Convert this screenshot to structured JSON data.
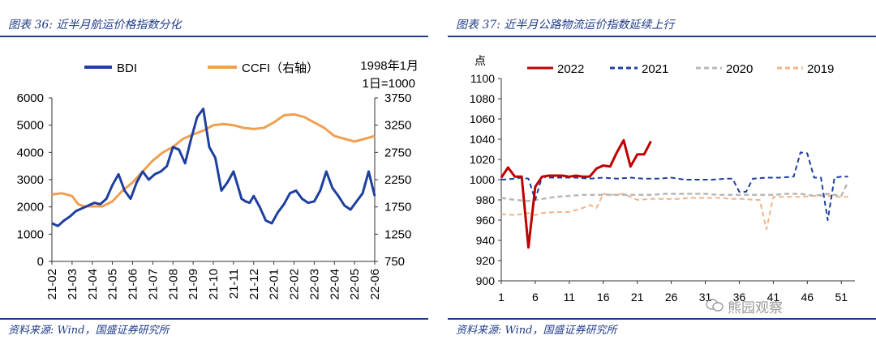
{
  "left": {
    "title": "图表 36:  近半月航运价格指数分化",
    "source": "资料来源:  Wind，国盛证券研究所",
    "legend_note_line1": "1998年1月",
    "legend_note_line2": "1日=1000",
    "colors": {
      "bdi": "#1f3f9f",
      "ccfi": "#f0a050",
      "axis": "#333333"
    }
  },
  "right": {
    "title": "图表 37:  近半月公路物流运价指数延续上行",
    "source": "资料来源:  Wind，国盛证券研究所",
    "y_unit": "点",
    "watermark": "熊园观察",
    "colors": {
      "2022": "#c00000",
      "2021": "#1f3f9f",
      "2020": "#b8b8b8",
      "2019": "#f2b48a"
    }
  },
  "chart_data": [
    {
      "type": "line",
      "title": "近半月航运价格指数分化",
      "categories": [
        "21-02",
        "21-03",
        "21-04",
        "21-05",
        "21-06",
        "21-07",
        "21-08",
        "21-09",
        "21-10",
        "21-11",
        "21-12",
        "22-01",
        "22-02",
        "22-03",
        "22-04",
        "22-05",
        "22-06"
      ],
      "y_left": {
        "ylim": [
          0,
          6000
        ],
        "ticks": [
          0,
          1000,
          2000,
          3000,
          4000,
          5000,
          6000
        ]
      },
      "y_right": {
        "ylim": [
          750,
          3750
        ],
        "ticks": [
          750,
          1250,
          1750,
          2250,
          2750,
          3250,
          3750
        ]
      },
      "series": [
        {
          "name": "BDI",
          "axis": "left",
          "x": [
            0,
            0.3,
            0.6,
            0.9,
            1.2,
            1.5,
            1.8,
            2.1,
            2.4,
            2.7,
            3.0,
            3.3,
            3.6,
            3.9,
            4.2,
            4.5,
            4.8,
            5.1,
            5.4,
            5.7,
            6.0,
            6.3,
            6.6,
            6.9,
            7.2,
            7.5,
            7.8,
            8.1,
            8.4,
            8.7,
            9.0,
            9.2,
            9.4,
            9.6,
            9.8,
            10.0,
            10.3,
            10.6,
            10.9,
            11.2,
            11.5,
            11.8,
            12.1,
            12.4,
            12.7,
            13.0,
            13.3,
            13.6,
            13.9,
            14.2,
            14.5,
            14.8,
            15.1,
            15.4,
            15.7,
            16.0
          ],
          "values": [
            1400,
            1300,
            1500,
            1650,
            1850,
            1950,
            2050,
            2150,
            2100,
            2300,
            2800,
            3200,
            2600,
            2300,
            2900,
            3300,
            3000,
            3200,
            3300,
            3500,
            4200,
            4100,
            3600,
            4500,
            5300,
            5600,
            4200,
            3800,
            2600,
            2900,
            3300,
            2800,
            2300,
            2200,
            2150,
            2400,
            2000,
            1500,
            1400,
            1800,
            2100,
            2500,
            2600,
            2300,
            2150,
            2200,
            2600,
            3300,
            2700,
            2400,
            2050,
            1900,
            2200,
            2500,
            3300,
            2400
          ]
        },
        {
          "name": "CCFI（右轴）",
          "axis": "right",
          "x": [
            0,
            0.5,
            1.0,
            1.3,
            1.6,
            2.0,
            2.5,
            3.0,
            3.5,
            4.0,
            4.5,
            5.0,
            5.5,
            6.0,
            6.5,
            7.0,
            7.5,
            8.0,
            8.5,
            9.0,
            9.5,
            10.0,
            10.5,
            11.0,
            11.5,
            12.0,
            12.5,
            13.0,
            13.5,
            14.0,
            14.5,
            15.0,
            15.5,
            16.0
          ],
          "values": [
            1980,
            2000,
            1950,
            1800,
            1760,
            1760,
            1760,
            1850,
            2050,
            2200,
            2400,
            2600,
            2750,
            2850,
            3000,
            3080,
            3150,
            3250,
            3270,
            3250,
            3200,
            3180,
            3200,
            3300,
            3430,
            3450,
            3400,
            3300,
            3200,
            3050,
            3000,
            2950,
            3000,
            3050
          ]
        }
      ]
    },
    {
      "type": "line",
      "title": "近半月公路物流运价指数延续上行",
      "x_ticks": [
        1,
        6,
        11,
        16,
        21,
        26,
        31,
        36,
        41,
        46,
        51
      ],
      "xlim": [
        1,
        53
      ],
      "ylim": [
        900,
        1100
      ],
      "y_ticks": [
        900,
        920,
        940,
        960,
        980,
        1000,
        1020,
        1040,
        1060,
        1080,
        1100
      ],
      "ylabel": "点",
      "series": [
        {
          "name": "2022",
          "x": [
            1,
            2,
            3,
            4,
            5,
            6,
            7,
            8,
            9,
            10,
            11,
            12,
            13,
            14,
            15,
            16,
            17,
            18,
            19,
            20,
            21,
            22,
            23
          ],
          "values": [
            1002,
            1012,
            1003,
            1003,
            933,
            993,
            1003,
            1004,
            1004,
            1004,
            1003,
            1004,
            1003,
            1003,
            1011,
            1014,
            1013,
            1027,
            1039,
            1013,
            1025,
            1025,
            1038
          ]
        },
        {
          "name": "2021",
          "x": [
            1,
            3,
            4,
            5,
            6,
            7,
            8,
            10,
            12,
            14,
            16,
            18,
            20,
            22,
            24,
            26,
            28,
            30,
            32,
            34,
            35,
            36,
            37,
            38,
            40,
            42,
            44,
            45,
            46,
            47,
            48,
            49,
            50,
            51,
            52
          ],
          "values": [
            1000,
            1001,
            1002,
            1001,
            980,
            1003,
            1002,
            1002,
            1002,
            1001,
            1002,
            1001,
            1002,
            1001,
            1001,
            1002,
            1000,
            1000,
            1000,
            1001,
            1001,
            988,
            988,
            1001,
            1002,
            1002,
            1003,
            1027,
            1026,
            1002,
            1002,
            960,
            1002,
            1003,
            1003
          ]
        },
        {
          "name": "2020",
          "x": [
            1,
            3,
            5,
            7,
            9,
            11,
            13,
            15,
            17,
            19,
            21,
            23,
            25,
            27,
            29,
            31,
            33,
            35,
            37,
            39,
            41,
            43,
            45,
            47,
            49,
            51,
            52
          ],
          "values": [
            982,
            980,
            979,
            981,
            983,
            984,
            985,
            985,
            985,
            985,
            985,
            985,
            986,
            986,
            986,
            986,
            985,
            985,
            985,
            985,
            985,
            986,
            986,
            984,
            986,
            984,
            998
          ]
        },
        {
          "name": "2019",
          "x": [
            1,
            3,
            5,
            6,
            7,
            9,
            11,
            13,
            14,
            15,
            16,
            17,
            19,
            21,
            23,
            25,
            27,
            29,
            31,
            33,
            35,
            37,
            38,
            39,
            40,
            41,
            43,
            45,
            47,
            49,
            51,
            52
          ],
          "values": [
            966,
            965,
            967,
            965,
            967,
            968,
            968,
            972,
            975,
            972,
            986,
            985,
            986,
            980,
            981,
            981,
            981,
            982,
            982,
            982,
            981,
            981,
            980,
            980,
            951,
            983,
            983,
            983,
            984,
            984,
            983,
            983
          ]
        }
      ]
    }
  ]
}
